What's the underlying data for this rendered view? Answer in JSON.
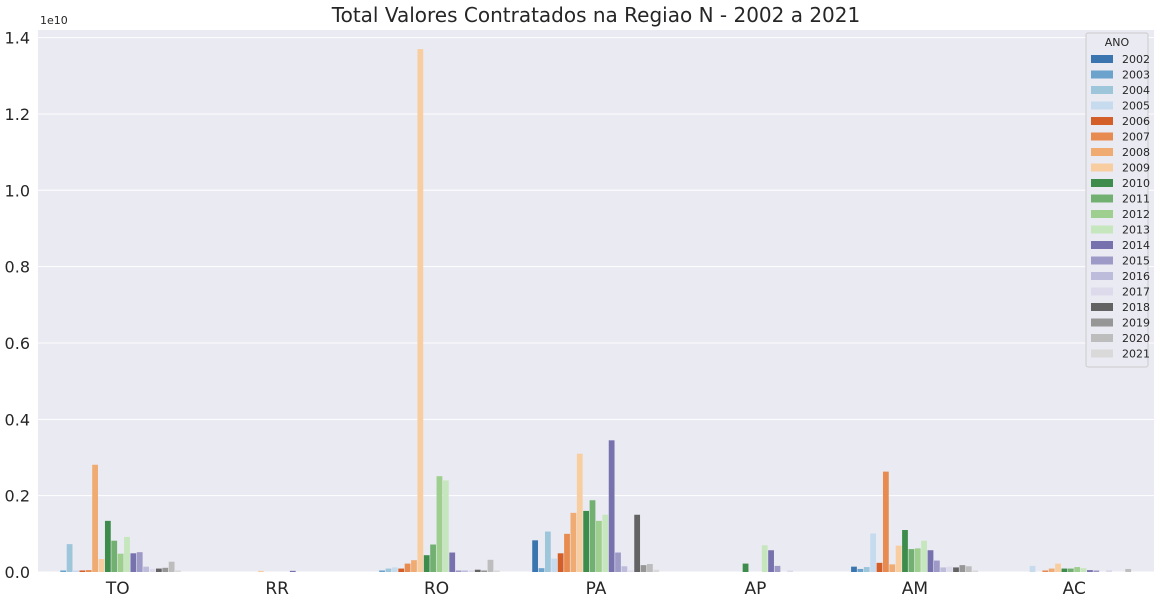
{
  "chart_data": {
    "type": "bar",
    "title": "Total Valores Contratados na Regiao N - 2002 a 2021",
    "xlabel": "",
    "ylabel": "",
    "y_offset_label": "1e10",
    "ylim": [
      0,
      1.42
    ],
    "yticks": [
      "0.0",
      "0.2",
      "0.4",
      "0.6",
      "0.8",
      "1.0",
      "1.2",
      "1.4"
    ],
    "grid": true,
    "legend_title": "ANO",
    "legend_position": "top-right",
    "categories": [
      "TO",
      "RR",
      "RO",
      "PA",
      "AP",
      "AM",
      "AC"
    ],
    "series": [
      {
        "name": "2002",
        "color": "#3a75af",
        "values": [
          0.0,
          0.0,
          0.0,
          0.083,
          0.0,
          0.014,
          0.0
        ]
      },
      {
        "name": "2003",
        "color": "#6ba3cc",
        "values": [
          0.004,
          0.0,
          0.004,
          0.01,
          0.0,
          0.008,
          0.0
        ]
      },
      {
        "name": "2004",
        "color": "#9ec6db",
        "values": [
          0.073,
          0.0,
          0.009,
          0.106,
          0.0,
          0.013,
          0.0
        ]
      },
      {
        "name": "2005",
        "color": "#c7dbee",
        "values": [
          0.004,
          0.0,
          0.012,
          0.035,
          0.0,
          0.101,
          0.016
        ]
      },
      {
        "name": "2006",
        "color": "#d45e27",
        "values": [
          0.004,
          0.0,
          0.009,
          0.049,
          0.0,
          0.024,
          0.0
        ]
      },
      {
        "name": "2007",
        "color": "#e88b50",
        "values": [
          0.005,
          0.0,
          0.022,
          0.1,
          0.0,
          0.263,
          0.004
        ]
      },
      {
        "name": "2008",
        "color": "#f0ab73",
        "values": [
          0.281,
          0.0,
          0.031,
          0.155,
          0.0,
          0.02,
          0.009
        ]
      },
      {
        "name": "2009",
        "color": "#f8ceA0",
        "values": [
          0.034,
          0.003,
          1.37,
          0.31,
          0.0,
          0.069,
          0.022
        ]
      },
      {
        "name": "2010",
        "color": "#3d8c4b",
        "values": [
          0.134,
          0.0,
          0.044,
          0.16,
          0.022,
          0.11,
          0.009
        ]
      },
      {
        "name": "2011",
        "color": "#72b071",
        "values": [
          0.082,
          0.0,
          0.072,
          0.188,
          0.0,
          0.06,
          0.009
        ]
      },
      {
        "name": "2012",
        "color": "#9fcf8f",
        "values": [
          0.048,
          0.0,
          0.251,
          0.134,
          0.0,
          0.062,
          0.013
        ]
      },
      {
        "name": "2013",
        "color": "#c6e6bd",
        "values": [
          0.092,
          0.0,
          0.24,
          0.15,
          0.07,
          0.082,
          0.01
        ]
      },
      {
        "name": "2014",
        "color": "#7771ae",
        "values": [
          0.049,
          0.003,
          0.051,
          0.345,
          0.057,
          0.057,
          0.005
        ]
      },
      {
        "name": "2015",
        "color": "#9e9ac8",
        "values": [
          0.052,
          0.0,
          0.004,
          0.051,
          0.016,
          0.03,
          0.004
        ]
      },
      {
        "name": "2016",
        "color": "#bdbcdb",
        "values": [
          0.014,
          0.0,
          0.004,
          0.015,
          0.0,
          0.012,
          0.0
        ]
      },
      {
        "name": "2017",
        "color": "#dcdaeb",
        "values": [
          0.008,
          0.0,
          0.004,
          0.004,
          0.004,
          0.014,
          0.005
        ]
      },
      {
        "name": "2018",
        "color": "#636363",
        "values": [
          0.009,
          0.0,
          0.006,
          0.15,
          0.0,
          0.012,
          0.0
        ]
      },
      {
        "name": "2019",
        "color": "#969696",
        "values": [
          0.011,
          0.0,
          0.004,
          0.018,
          0.0,
          0.018,
          0.0
        ]
      },
      {
        "name": "2020",
        "color": "#bdbdbd",
        "values": [
          0.027,
          0.0,
          0.032,
          0.021,
          0.0,
          0.015,
          0.008
        ]
      },
      {
        "name": "2021",
        "color": "#d9d9d9",
        "values": [
          0.004,
          0.0,
          0.004,
          0.006,
          0.0,
          0.004,
          0.0
        ]
      }
    ]
  },
  "colors": {
    "plot_background": "#eaeaf2",
    "grid": "#ffffff",
    "text": "#262626"
  }
}
